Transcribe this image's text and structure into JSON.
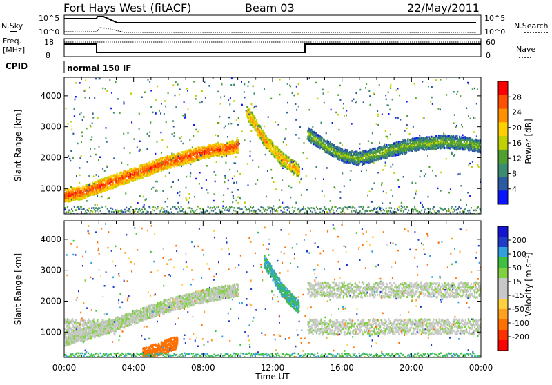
{
  "header": {
    "title": "Fort Hays West (fitACF)",
    "beam": "Beam 03",
    "date": "22/May/2011"
  },
  "status_panels": {
    "nsky_label": "N.Sky",
    "nsearch_label": "N.Search",
    "noise_ticks": [
      "10^5",
      "10^0"
    ],
    "freq_label_1": "Freq.",
    "freq_label_2": "[MHz]",
    "freq_ticks": [
      "18",
      "8"
    ],
    "nave_label": "Nave",
    "nave_ticks": [
      "60",
      "0"
    ],
    "cpid_label": "CPID",
    "cpid_value": "normal 150 IF"
  },
  "power_colorbar": {
    "label": "Power [dB]",
    "ticks": [
      "28",
      "24",
      "20",
      "16",
      "12",
      "8",
      "4"
    ],
    "colors": [
      "#ff0000",
      "#ff5000",
      "#ff9000",
      "#ffd000",
      "#c0d000",
      "#50a030",
      "#3c8c70",
      "#2a5aa0",
      "#0a14ff"
    ]
  },
  "velocity_colorbar": {
    "label": "Velocity [m s⁻¹]",
    "ticks": [
      "200",
      "100",
      "50",
      "15",
      "-15",
      "-50",
      "-100",
      "-200"
    ],
    "colors": [
      "#1414d2",
      "#1e3cc8",
      "#32a0dc",
      "#40c040",
      "#80d040",
      "#c8c8c8",
      "#c8c8c8",
      "#ffd040",
      "#ffa020",
      "#ff7000",
      "#ff3000",
      "#ff0000"
    ]
  },
  "chart_data": [
    {
      "type": "heatmap",
      "panel": "power",
      "title": "",
      "xlabel": "",
      "ylabel": "Slant Range [km]",
      "xlim": [
        0,
        24
      ],
      "ylim": [
        180,
        4600
      ],
      "yticks": [
        "1000",
        "2000",
        "3000",
        "4000"
      ],
      "xticks": [],
      "features": [
        {
          "name": "",
          "x_hours": [
            0,
            1.0,
            1.5,
            2,
            3,
            4,
            5,
            6,
            7,
            8,
            9,
            10
          ],
          "range_km": [
            800,
            900,
            1000,
            1100,
            1300,
            1500,
            1700,
            1900,
            2050,
            2200,
            2300,
            2400
          ],
          "power_db": 26
        },
        {
          "name": "",
          "x_hours": [
            10.5,
            11,
            11.5,
            12,
            12.5,
            13,
            13.5
          ],
          "range_km": [
            3500,
            3100,
            2600,
            2300,
            2000,
            1800,
            1600
          ],
          "power_db": 22
        },
        {
          "name": "",
          "x_hours": [
            14,
            15,
            16,
            17,
            18,
            19,
            20,
            21,
            22,
            23,
            24
          ],
          "range_km": [
            2800,
            2400,
            2100,
            2000,
            2150,
            2300,
            2450,
            2500,
            2550,
            2500,
            2400
          ],
          "power_db": 14
        }
      ]
    },
    {
      "type": "heatmap",
      "panel": "velocity",
      "title": "",
      "xlabel": "Time UT",
      "ylabel": "Slant Range [km]",
      "xlim": [
        0,
        24
      ],
      "ylim": [
        180,
        4600
      ],
      "yticks": [
        "1000",
        "2000",
        "3000",
        "4000"
      ],
      "xticks": [
        "00:00",
        "04:00",
        "08:00",
        "12:00",
        "16:00",
        "20:00",
        "00:00"
      ],
      "features": [
        {
          "name": "",
          "x_hours": [
            0,
            2,
            4,
            6,
            8,
            10
          ],
          "range_km": [
            800,
            1100,
            1500,
            1900,
            2200,
            2400
          ],
          "velocity_ms": 0
        },
        {
          "name": "",
          "x_hours": [
            4.5,
            5,
            5.5,
            6,
            6.5
          ],
          "range_km": [
            300,
            400,
            500,
            600,
            700
          ],
          "velocity_ms": -150
        },
        {
          "name": "",
          "x_hours": [
            11.5,
            12,
            12.5,
            13,
            13.5
          ],
          "range_km": [
            3300,
            2900,
            2400,
            2100,
            1800
          ],
          "velocity_ms": 50
        }
      ]
    }
  ]
}
